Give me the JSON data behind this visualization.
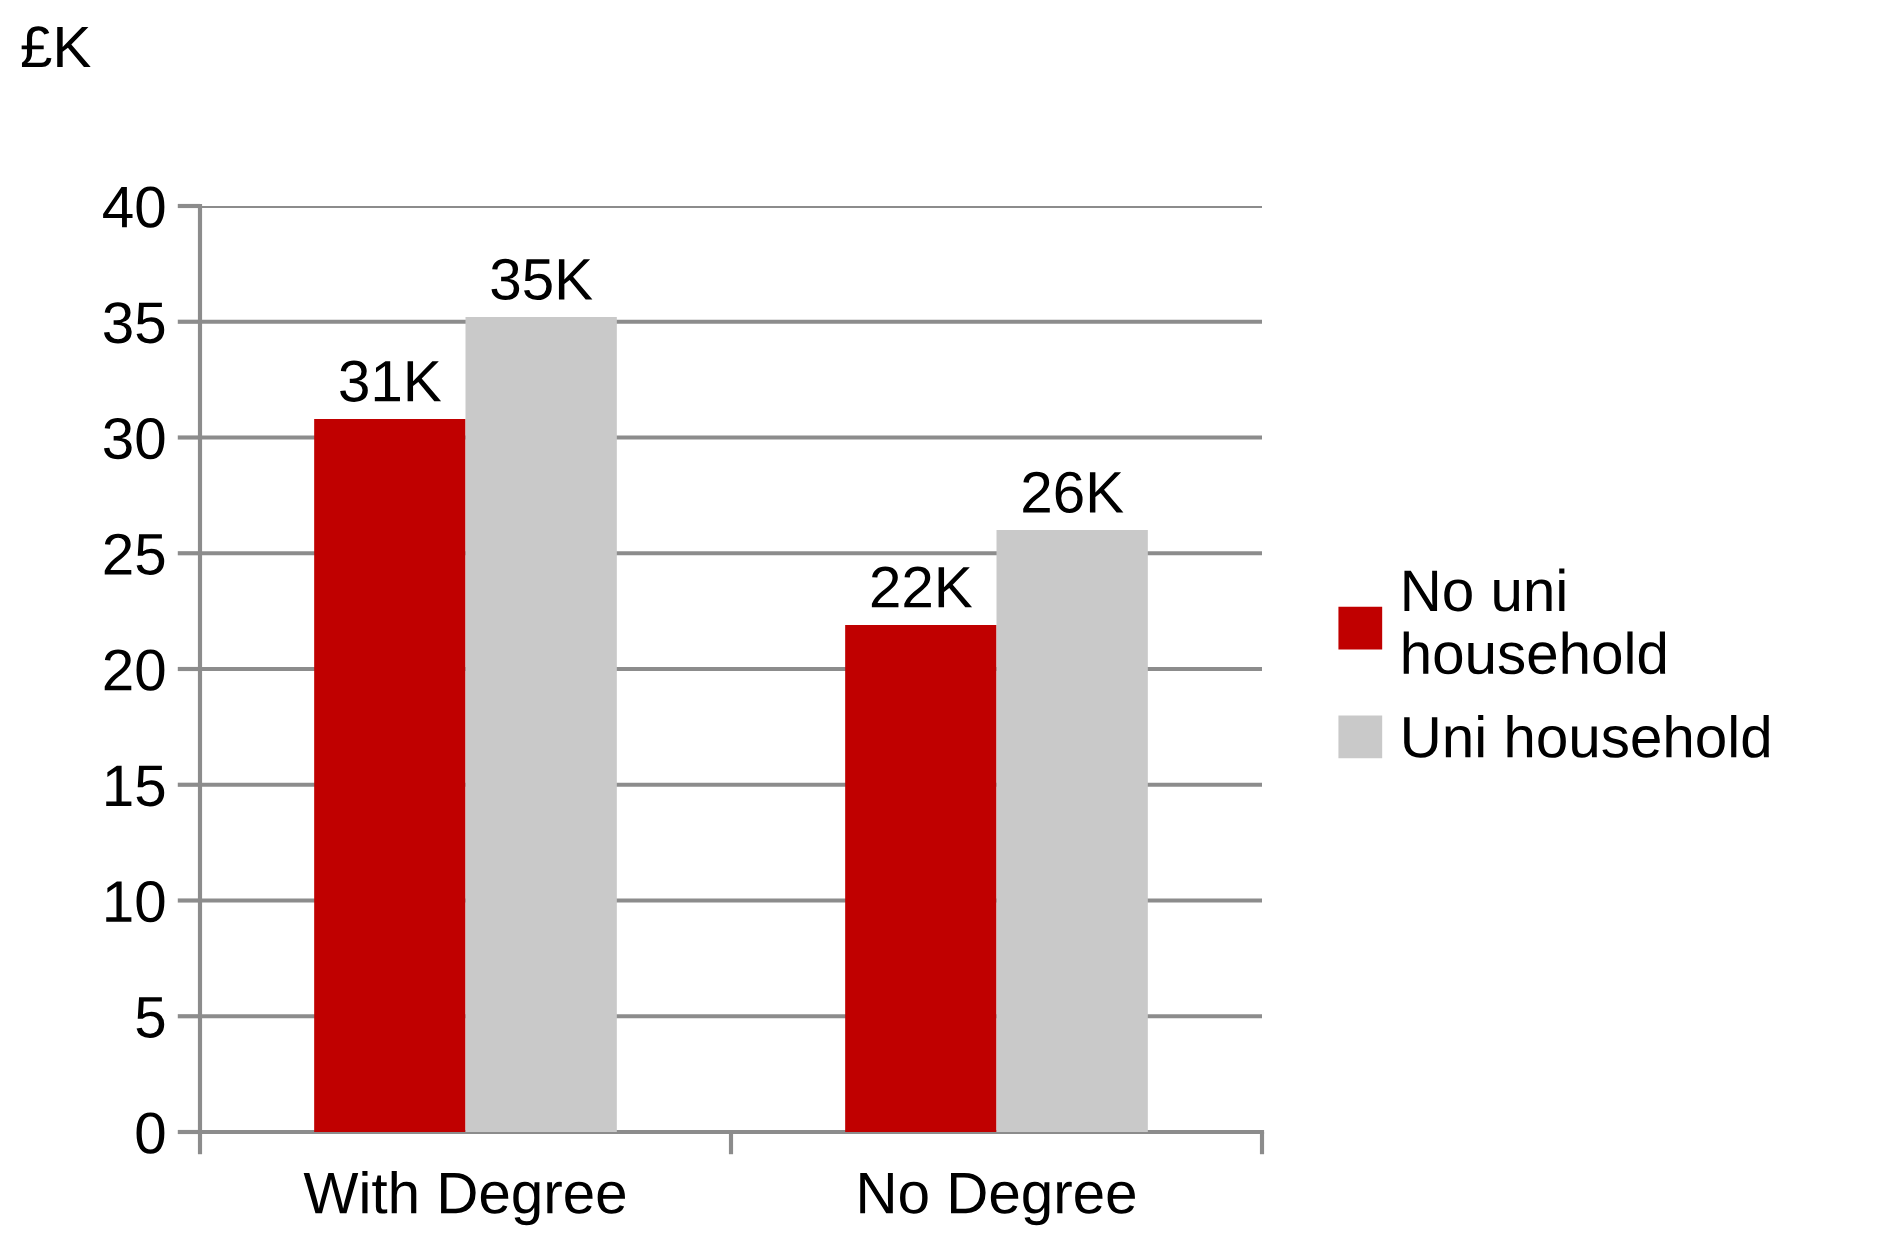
{
  "chart_data": {
    "type": "bar",
    "ylabel": "£K",
    "categories": [
      "With Degree",
      "No Degree"
    ],
    "series": [
      {
        "name": "No uni\nhousehold",
        "color": "#c00000",
        "values": [
          30.8,
          21.9
        ],
        "value_labels": [
          "31K",
          "22K"
        ]
      },
      {
        "name": "Uni household",
        "color": "#c9c9c9",
        "values": [
          35.2,
          26.0
        ],
        "value_labels": [
          "35K",
          "26K"
        ]
      }
    ],
    "ylim": [
      0,
      40
    ],
    "yticks": [
      0,
      5,
      10,
      15,
      20,
      25,
      30,
      35,
      40
    ],
    "grid": "y",
    "legend": "right"
  }
}
